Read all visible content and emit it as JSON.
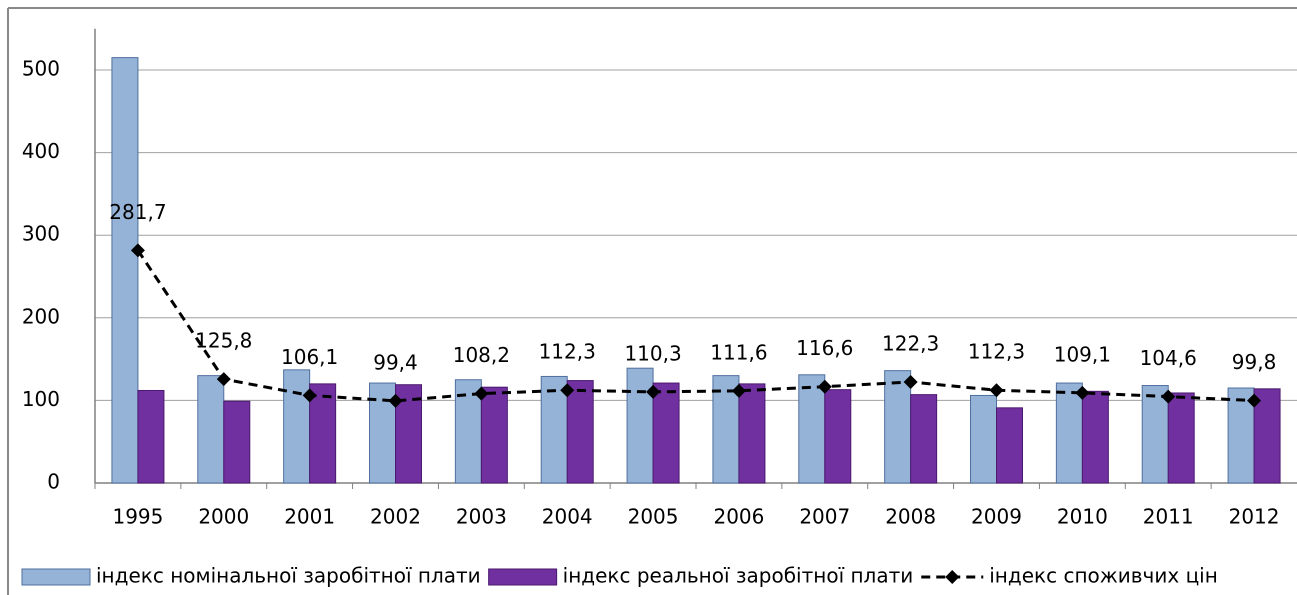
{
  "chart_data": {
    "type": "bar",
    "categories": [
      "1995",
      "2000",
      "2001",
      "2002",
      "2003",
      "2004",
      "2005",
      "2006",
      "2007",
      "2008",
      "2009",
      "2010",
      "2011",
      "2012"
    ],
    "series": [
      {
        "name": "індекс номінальної заробітної плати",
        "color": "#95b3d7",
        "type": "bar",
        "values": [
          515,
          130,
          137,
          121,
          125,
          129,
          139,
          130,
          131,
          136,
          106,
          121,
          118,
          115
        ]
      },
      {
        "name": "індекс реальної заробітної плати",
        "color": "#7030a0",
        "type": "bar",
        "values": [
          112,
          99,
          120,
          119,
          116,
          124,
          121,
          120,
          113,
          107,
          91,
          111,
          109,
          114
        ]
      },
      {
        "name": "індекс споживчих цін",
        "color": "#000000",
        "type": "line",
        "values": [
          281.7,
          125.8,
          106.1,
          99.4,
          108.2,
          112.3,
          110.3,
          111.6,
          116.6,
          122.3,
          112.3,
          109.1,
          104.6,
          99.8
        ],
        "value_labels": [
          "281,7",
          "125,8",
          "106,1",
          "99,4",
          "108,2",
          "112,3",
          "110,3",
          "111,6",
          "116,6",
          "122,3",
          "112,3",
          "109,1",
          "104,6",
          "99,8"
        ]
      }
    ],
    "ylim": [
      0,
      550
    ],
    "yticks": [
      0,
      100,
      200,
      300,
      400,
      500
    ],
    "grid": true,
    "legend": "bottom"
  }
}
